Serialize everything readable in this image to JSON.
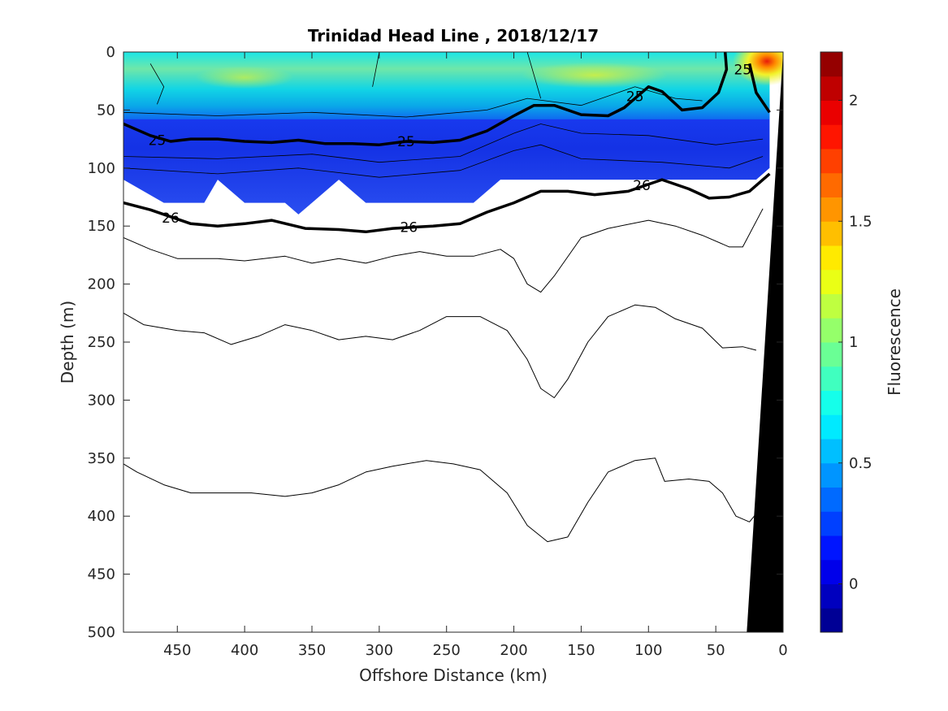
{
  "chart_data": {
    "type": "heatmap",
    "subtype": "filled-contour-section",
    "title": "Trinidad Head Line , 2018/12/17",
    "xlabel": "Offshore Distance (km)",
    "ylabel": "Depth (m)",
    "xlim": [
      490,
      0
    ],
    "ylim": [
      0,
      500
    ],
    "x_reversed": true,
    "y_reversed": true,
    "xticks": [
      450,
      400,
      350,
      300,
      250,
      200,
      150,
      100,
      50,
      0
    ],
    "xtick_labels": [
      "450",
      "400",
      "350",
      "300",
      "250",
      "200",
      "150",
      "100",
      "50",
      "0"
    ],
    "yticks": [
      0,
      50,
      100,
      150,
      200,
      250,
      300,
      350,
      400,
      450,
      500
    ],
    "ytick_labels": [
      "0",
      "50",
      "100",
      "150",
      "200",
      "250",
      "300",
      "350",
      "400",
      "450",
      "500"
    ],
    "colorbar": {
      "label": "Fluorescence",
      "range": [
        -0.2,
        2.2
      ],
      "ticks": [
        0,
        0.5,
        1,
        1.5,
        2
      ],
      "tick_labels": [
        "0",
        "0.5",
        "1",
        "1.5",
        "2"
      ],
      "levels": 24,
      "colormap": "jet"
    },
    "fluorescence_field": {
      "description_values_by_depth_band": [
        {
          "depth": [
            0,
            45
          ],
          "typical": 0.85,
          "near_shore_max": 2.2
        },
        {
          "depth": [
            45,
            60
          ],
          "typical": 0.6
        },
        {
          "depth": [
            60,
            110
          ],
          "typical": 0.1
        },
        {
          "depth": [
            110,
            140
          ],
          "typical": 0.15
        }
      ],
      "data_extent": {
        "max_depth_profile": [
          [
            490,
            110
          ],
          [
            460,
            130
          ],
          [
            430,
            130
          ],
          [
            420,
            110
          ],
          [
            400,
            130
          ],
          [
            370,
            130
          ],
          [
            360,
            140
          ],
          [
            350,
            130
          ],
          [
            330,
            110
          ],
          [
            310,
            130
          ],
          [
            250,
            130
          ],
          [
            230,
            130
          ],
          [
            210,
            110
          ],
          [
            20,
            110
          ],
          [
            10,
            100
          ]
        ],
        "shore_edge_km": 10
      },
      "hotspot": {
        "x_km": 12,
        "depth_m": 8,
        "value": 2.2
      }
    },
    "density_contours": [
      {
        "level": 25,
        "labelled": true,
        "bold": true,
        "labels": [
          {
            "text": "25",
            "x_km": 465,
            "depth_m": 76
          },
          {
            "text": "25",
            "x_km": 280,
            "depth_m": 77
          },
          {
            "text": "25",
            "x_km": 110,
            "depth_m": 38
          },
          {
            "text": "25",
            "x_km": 30,
            "depth_m": 15
          }
        ],
        "points": [
          [
            490,
            62
          ],
          [
            470,
            72
          ],
          [
            455,
            77
          ],
          [
            440,
            75
          ],
          [
            420,
            75
          ],
          [
            400,
            77
          ],
          [
            380,
            78
          ],
          [
            360,
            76
          ],
          [
            340,
            79
          ],
          [
            320,
            79
          ],
          [
            300,
            80
          ],
          [
            280,
            77
          ],
          [
            260,
            78
          ],
          [
            240,
            76
          ],
          [
            220,
            68
          ],
          [
            200,
            55
          ],
          [
            185,
            46
          ],
          [
            170,
            46
          ],
          [
            150,
            54
          ],
          [
            130,
            55
          ],
          [
            118,
            48
          ],
          [
            100,
            30
          ],
          [
            90,
            34
          ],
          [
            75,
            50
          ],
          [
            60,
            48
          ],
          [
            48,
            35
          ],
          [
            42,
            15
          ],
          [
            43,
            0
          ]
        ],
        "branch_points": [
          [
            25,
            10
          ],
          [
            20,
            35
          ],
          [
            10,
            52
          ]
        ]
      },
      {
        "level": 26,
        "labelled": true,
        "bold": true,
        "labels": [
          {
            "text": "26",
            "x_km": 455,
            "depth_m": 143
          },
          {
            "text": "26",
            "x_km": 278,
            "depth_m": 151
          },
          {
            "text": "26",
            "x_km": 105,
            "depth_m": 115
          }
        ],
        "points": [
          [
            490,
            130
          ],
          [
            470,
            136
          ],
          [
            440,
            148
          ],
          [
            420,
            150
          ],
          [
            400,
            148
          ],
          [
            380,
            145
          ],
          [
            355,
            152
          ],
          [
            330,
            153
          ],
          [
            310,
            155
          ],
          [
            290,
            152
          ],
          [
            260,
            150
          ],
          [
            240,
            148
          ],
          [
            220,
            138
          ],
          [
            200,
            130
          ],
          [
            180,
            120
          ],
          [
            160,
            120
          ],
          [
            140,
            123
          ],
          [
            115,
            120
          ],
          [
            90,
            110
          ],
          [
            70,
            118
          ],
          [
            55,
            126
          ],
          [
            40,
            125
          ],
          [
            25,
            120
          ],
          [
            10,
            105
          ]
        ]
      },
      {
        "level": "unlabelled-1",
        "labelled": false,
        "bold": false,
        "points": [
          [
            490,
            160
          ],
          [
            470,
            170
          ],
          [
            450,
            178
          ],
          [
            420,
            178
          ],
          [
            400,
            180
          ],
          [
            370,
            176
          ],
          [
            350,
            182
          ],
          [
            330,
            178
          ],
          [
            310,
            182
          ],
          [
            290,
            176
          ],
          [
            270,
            172
          ],
          [
            250,
            176
          ],
          [
            230,
            176
          ],
          [
            210,
            170
          ],
          [
            200,
            178
          ],
          [
            190,
            200
          ],
          [
            180,
            207
          ],
          [
            170,
            193
          ],
          [
            150,
            160
          ],
          [
            130,
            152
          ],
          [
            100,
            145
          ],
          [
            80,
            150
          ],
          [
            60,
            158
          ],
          [
            40,
            168
          ],
          [
            30,
            168
          ],
          [
            15,
            135
          ]
        ]
      },
      {
        "level": "unlabelled-2",
        "labelled": false,
        "bold": false,
        "points": [
          [
            490,
            225
          ],
          [
            475,
            235
          ],
          [
            450,
            240
          ],
          [
            430,
            242
          ],
          [
            410,
            252
          ],
          [
            390,
            245
          ],
          [
            370,
            235
          ],
          [
            350,
            240
          ],
          [
            330,
            248
          ],
          [
            310,
            245
          ],
          [
            290,
            248
          ],
          [
            270,
            240
          ],
          [
            250,
            228
          ],
          [
            225,
            228
          ],
          [
            205,
            240
          ],
          [
            190,
            265
          ],
          [
            180,
            290
          ],
          [
            170,
            298
          ],
          [
            160,
            282
          ],
          [
            145,
            250
          ],
          [
            130,
            228
          ],
          [
            110,
            218
          ],
          [
            95,
            220
          ],
          [
            80,
            230
          ],
          [
            60,
            238
          ],
          [
            45,
            255
          ],
          [
            30,
            254
          ],
          [
            20,
            257
          ]
        ]
      },
      {
        "level": "unlabelled-3",
        "labelled": false,
        "bold": false,
        "points": [
          [
            490,
            355
          ],
          [
            480,
            362
          ],
          [
            460,
            373
          ],
          [
            440,
            380
          ],
          [
            420,
            380
          ],
          [
            395,
            380
          ],
          [
            370,
            383
          ],
          [
            350,
            380
          ],
          [
            330,
            373
          ],
          [
            310,
            362
          ],
          [
            290,
            357
          ],
          [
            265,
            352
          ],
          [
            245,
            355
          ],
          [
            225,
            360
          ],
          [
            205,
            380
          ],
          [
            190,
            408
          ],
          [
            175,
            422
          ],
          [
            160,
            418
          ],
          [
            145,
            388
          ],
          [
            130,
            362
          ],
          [
            110,
            352
          ],
          [
            95,
            350
          ],
          [
            88,
            370
          ],
          [
            70,
            368
          ],
          [
            55,
            370
          ],
          [
            45,
            380
          ],
          [
            35,
            400
          ],
          [
            25,
            405
          ],
          [
            20,
            398
          ]
        ]
      }
    ],
    "bathymetry": {
      "fill": "#000000",
      "polygon_km_m": [
        [
          0,
          0
        ],
        [
          27,
          500
        ],
        [
          0,
          500
        ]
      ]
    }
  }
}
